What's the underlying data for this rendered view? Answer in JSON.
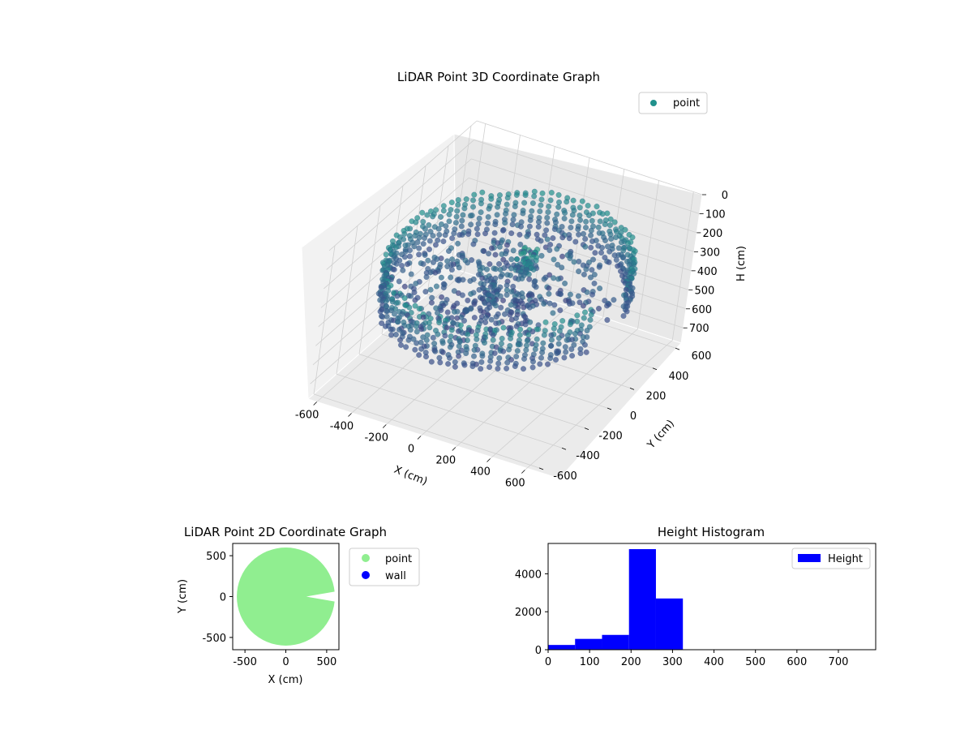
{
  "chart_data": [
    {
      "type": "scatter3d",
      "title": "LiDAR Point 3D Coordinate Graph",
      "xlabel": "X (cm)",
      "ylabel": "Y (cm)",
      "zlabel": "H (cm)",
      "xlim": [
        -650,
        650
      ],
      "ylim": [
        -650,
        650
      ],
      "zlim": [
        0,
        780
      ],
      "z_inverted": true,
      "x_ticks": [
        "-600",
        "-400",
        "-200",
        "0",
        "200",
        "400",
        "600"
      ],
      "y_ticks": [
        "-600",
        "-400",
        "-200",
        "0",
        "200",
        "400",
        "600"
      ],
      "z_ticks": [
        "0",
        "100",
        "200",
        "300",
        "400",
        "500",
        "600",
        "700"
      ],
      "grid": true,
      "legend": {
        "placement": "top-right",
        "entries": [
          {
            "name": "point",
            "color": "#21918c"
          }
        ]
      },
      "colormap": "viridis",
      "description_of_points": "ring of points at radius ~580-620 cm spanning heights ~200-450 cm, with an interior cluster near the center and a gap toward +X",
      "series": [
        {
          "name": "point",
          "color": "#21918c",
          "ring_radius": 600,
          "ring_height_range": [
            200,
            420
          ],
          "gap_angle_deg": [
            -15,
            15
          ]
        }
      ]
    },
    {
      "type": "scatter",
      "title": "LiDAR Point 2D Coordinate Graph",
      "xlabel": "X (cm)",
      "ylabel": "Y (cm)",
      "xlim": [
        -650,
        650
      ],
      "ylim": [
        -650,
        650
      ],
      "x_ticks": [
        "-500",
        "0",
        "500"
      ],
      "y_ticks": [
        "-500",
        "0",
        "500"
      ],
      "legend": {
        "placement": "outside-right",
        "entries": [
          {
            "name": "point",
            "color": "#90ee90"
          },
          {
            "name": "wall",
            "color": "#0000ff"
          }
        ]
      },
      "series": [
        {
          "name": "point",
          "color": "#90ee90",
          "shape": "filled-disc",
          "radius": 600,
          "notch": {
            "from_x": 250,
            "to_x": 650,
            "y_half_width": 70
          }
        },
        {
          "name": "wall",
          "color": "#0000ff",
          "points": []
        }
      ]
    },
    {
      "type": "bar",
      "title": "Height Histogram",
      "xlabel": "",
      "ylabel": "",
      "xlim": [
        0,
        790
      ],
      "ylim": [
        0,
        5600
      ],
      "x_ticks": [
        "0",
        "100",
        "200",
        "300",
        "400",
        "500",
        "600",
        "700"
      ],
      "y_ticks": [
        "0",
        "2000",
        "4000"
      ],
      "legend": {
        "placement": "top-right",
        "entries": [
          {
            "name": "Height",
            "color": "#0000ff"
          }
        ]
      },
      "bins": [
        {
          "x0": 0,
          "x1": 65,
          "count": 250
        },
        {
          "x0": 65,
          "x1": 130,
          "count": 570
        },
        {
          "x0": 130,
          "x1": 195,
          "count": 780
        },
        {
          "x0": 195,
          "x1": 260,
          "count": 5300
        },
        {
          "x0": 260,
          "x1": 325,
          "count": 2700
        }
      ],
      "color": "#0000ff"
    }
  ]
}
